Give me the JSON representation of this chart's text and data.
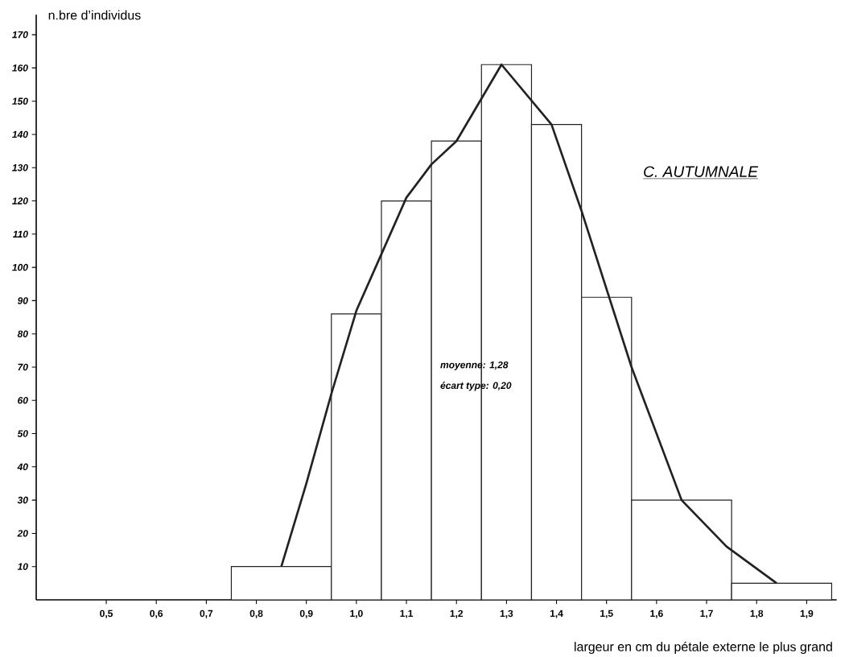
{
  "chart_data": {
    "type": "histogram",
    "title": "C. AUTUMNALE",
    "xlabel": "largeur en cm du pétale externe le plus grand",
    "ylabel": "n.bre d’individus",
    "annotations": [
      "moyenne: 1,28",
      "écart type: 0,20"
    ],
    "bins": [
      0.75,
      0.95,
      1.05,
      1.15,
      1.25,
      1.35,
      1.45,
      1.55,
      1.75,
      1.95
    ],
    "values": [
      10,
      86,
      120,
      138,
      161,
      143,
      91,
      30,
      5
    ],
    "color": "#222222",
    "series": [
      {
        "type": "line",
        "color": "#222222",
        "x": [
          0.85,
          0.9,
          0.95,
          1.0,
          1.05,
          1.1,
          1.15,
          1.2,
          1.29,
          1.39,
          1.45,
          1.55,
          1.65,
          1.74,
          1.84
        ],
        "values": [
          10,
          35,
          62,
          87,
          104,
          121,
          131,
          138,
          161,
          143,
          117,
          70,
          30,
          16,
          5
        ]
      }
    ],
    "xlim": [
      0.36,
      1.96
    ],
    "ylim": [
      0,
      176
    ],
    "xticks": [
      {
        "value": 0.5,
        "label": "0,5"
      },
      {
        "value": 0.6,
        "label": "0,6"
      },
      {
        "value": 0.7,
        "label": "0,7"
      },
      {
        "value": 0.8,
        "label": "0,8"
      },
      {
        "value": 0.9,
        "label": "0,9"
      },
      {
        "value": 1.0,
        "label": "1,0"
      },
      {
        "value": 1.1,
        "label": "1,1"
      },
      {
        "value": 1.2,
        "label": "1,2"
      },
      {
        "value": 1.3,
        "label": "1,3"
      },
      {
        "value": 1.4,
        "label": "1,4"
      },
      {
        "value": 1.5,
        "label": "1,5"
      },
      {
        "value": 1.6,
        "label": "1,6"
      },
      {
        "value": 1.7,
        "label": "1,7"
      },
      {
        "value": 1.8,
        "label": "1,8"
      },
      {
        "value": 1.9,
        "label": "1,9"
      }
    ],
    "yticks": [
      10,
      20,
      30,
      40,
      50,
      60,
      70,
      80,
      90,
      100,
      110,
      120,
      130,
      140,
      150,
      160,
      170
    ],
    "grid": false
  }
}
